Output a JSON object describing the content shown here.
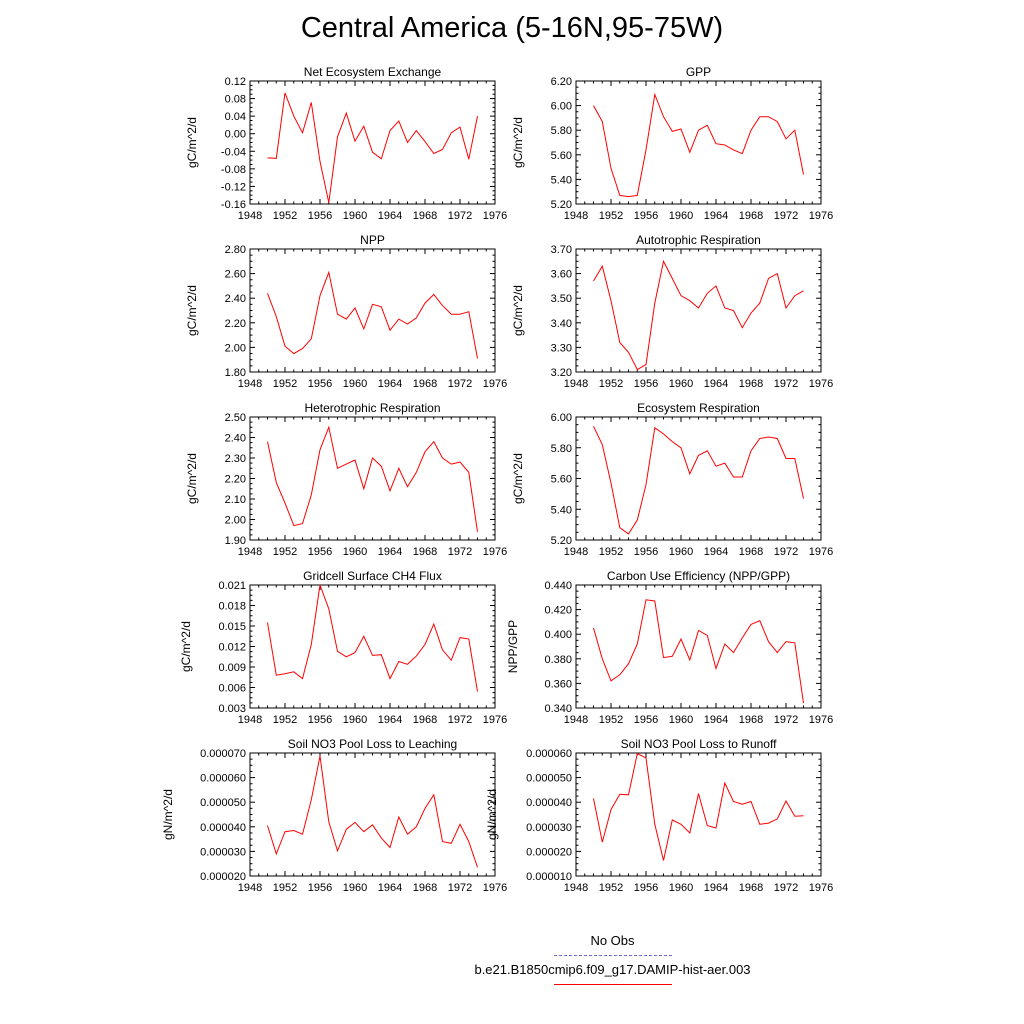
{
  "title": "Central America (5-16N,95-75W)",
  "colors": {
    "model": "#ff0000",
    "obs": "#6b6bd6",
    "axis": "#000000"
  },
  "legend": {
    "obs_label": "No Obs",
    "model_label": "b.e21.B1850cmip6.f09_g17.DAMIP-hist-aer.003"
  },
  "chart_data": [
    {
      "type": "line",
      "title": "Net Ecosystem Exchange",
      "ylabel": "gC/m^2/d",
      "xlim": [
        1948,
        1976
      ],
      "ylim": [
        -0.16,
        0.12
      ],
      "xticks": [
        "1948",
        "1952",
        "1956",
        "1960",
        "1964",
        "1968",
        "1972",
        "1976"
      ],
      "yticks": [
        "-0.16",
        "-0.12",
        "-0.08",
        "-0.04",
        "0.00",
        "0.04",
        "0.08",
        "0.12"
      ],
      "x": [
        1950,
        1951,
        1952,
        1953,
        1954,
        1955,
        1956,
        1957,
        1958,
        1959,
        1960,
        1961,
        1962,
        1963,
        1964,
        1965,
        1966,
        1967,
        1968,
        1969,
        1970,
        1971,
        1972,
        1973,
        1974
      ],
      "values": [
        -0.055,
        -0.056,
        0.093,
        0.04,
        0.002,
        0.071,
        -0.063,
        -0.157,
        -0.007,
        0.047,
        -0.017,
        0.017,
        -0.042,
        -0.057,
        0.007,
        0.029,
        -0.02,
        0.007,
        -0.018,
        -0.045,
        -0.036,
        0.002,
        0.015,
        -0.058,
        0.04
      ]
    },
    {
      "type": "line",
      "title": "GPP",
      "ylabel": "gC/m^2/d",
      "xlim": [
        1948,
        1976
      ],
      "ylim": [
        5.2,
        6.2
      ],
      "xticks": [
        "1948",
        "1952",
        "1956",
        "1960",
        "1964",
        "1968",
        "1972",
        "1976"
      ],
      "yticks": [
        "5.20",
        "5.40",
        "5.60",
        "5.80",
        "6.00",
        "6.20"
      ],
      "x": [
        1950,
        1951,
        1952,
        1953,
        1954,
        1955,
        1956,
        1957,
        1958,
        1959,
        1960,
        1961,
        1962,
        1963,
        1964,
        1965,
        1966,
        1967,
        1968,
        1969,
        1970,
        1971,
        1972,
        1973,
        1974
      ],
      "values": [
        6.0,
        5.87,
        5.49,
        5.27,
        5.26,
        5.27,
        5.64,
        6.09,
        5.91,
        5.79,
        5.81,
        5.62,
        5.8,
        5.84,
        5.69,
        5.68,
        5.64,
        5.61,
        5.8,
        5.91,
        5.91,
        5.87,
        5.73,
        5.8,
        5.44
      ]
    },
    {
      "type": "line",
      "title": "NPP",
      "ylabel": "gC/m^2/d",
      "xlim": [
        1948,
        1976
      ],
      "ylim": [
        1.8,
        2.8
      ],
      "xticks": [
        "1948",
        "1952",
        "1956",
        "1960",
        "1964",
        "1968",
        "1972",
        "1976"
      ],
      "yticks": [
        "1.80",
        "2.00",
        "2.20",
        "2.40",
        "2.60",
        "2.80"
      ],
      "x": [
        1950,
        1951,
        1952,
        1953,
        1954,
        1955,
        1956,
        1957,
        1958,
        1959,
        1960,
        1961,
        1962,
        1963,
        1964,
        1965,
        1966,
        1967,
        1968,
        1969,
        1970,
        1971,
        1972,
        1973,
        1974
      ],
      "values": [
        2.44,
        2.25,
        2.01,
        1.95,
        1.99,
        2.07,
        2.42,
        2.61,
        2.27,
        2.23,
        2.32,
        2.15,
        2.35,
        2.33,
        2.14,
        2.23,
        2.19,
        2.24,
        2.36,
        2.43,
        2.34,
        2.27,
        2.27,
        2.29,
        1.91
      ]
    },
    {
      "type": "line",
      "title": "Autotrophic Respiration",
      "ylabel": "gC/m^2/d",
      "xlim": [
        1948,
        1976
      ],
      "ylim": [
        3.2,
        3.7
      ],
      "xticks": [
        "1948",
        "1952",
        "1956",
        "1960",
        "1964",
        "1968",
        "1972",
        "1976"
      ],
      "yticks": [
        "3.20",
        "3.30",
        "3.40",
        "3.50",
        "3.60",
        "3.70"
      ],
      "x": [
        1950,
        1951,
        1952,
        1953,
        1954,
        1955,
        1956,
        1957,
        1958,
        1959,
        1960,
        1961,
        1962,
        1963,
        1964,
        1965,
        1966,
        1967,
        1968,
        1969,
        1970,
        1971,
        1972,
        1973,
        1974
      ],
      "values": [
        3.57,
        3.63,
        3.49,
        3.32,
        3.28,
        3.21,
        3.23,
        3.48,
        3.65,
        3.58,
        3.51,
        3.49,
        3.46,
        3.52,
        3.55,
        3.46,
        3.45,
        3.38,
        3.44,
        3.48,
        3.58,
        3.6,
        3.46,
        3.51,
        3.53
      ]
    },
    {
      "type": "line",
      "title": "Heterotrophic Respiration",
      "ylabel": "gC/m^2/d",
      "xlim": [
        1948,
        1976
      ],
      "ylim": [
        1.9,
        2.5
      ],
      "xticks": [
        "1948",
        "1952",
        "1956",
        "1960",
        "1964",
        "1968",
        "1972",
        "1976"
      ],
      "yticks": [
        "1.90",
        "2.00",
        "2.10",
        "2.20",
        "2.30",
        "2.40",
        "2.50"
      ],
      "x": [
        1950,
        1951,
        1952,
        1953,
        1954,
        1955,
        1956,
        1957,
        1958,
        1959,
        1960,
        1961,
        1962,
        1963,
        1964,
        1965,
        1966,
        1967,
        1968,
        1969,
        1970,
        1971,
        1972,
        1973,
        1974
      ],
      "values": [
        2.38,
        2.18,
        2.08,
        1.97,
        1.98,
        2.12,
        2.34,
        2.45,
        2.25,
        2.27,
        2.29,
        2.15,
        2.3,
        2.26,
        2.14,
        2.25,
        2.16,
        2.23,
        2.33,
        2.38,
        2.3,
        2.27,
        2.28,
        2.23,
        1.94
      ]
    },
    {
      "type": "line",
      "title": "Ecosystem Respiration",
      "ylabel": "gC/m^2/d",
      "xlim": [
        1948,
        1976
      ],
      "ylim": [
        5.2,
        6.0
      ],
      "xticks": [
        "1948",
        "1952",
        "1956",
        "1960",
        "1964",
        "1968",
        "1972",
        "1976"
      ],
      "yticks": [
        "5.20",
        "5.40",
        "5.60",
        "5.80",
        "6.00"
      ],
      "x": [
        1950,
        1951,
        1952,
        1953,
        1954,
        1955,
        1956,
        1957,
        1958,
        1959,
        1960,
        1961,
        1962,
        1963,
        1964,
        1965,
        1966,
        1967,
        1968,
        1969,
        1970,
        1971,
        1972,
        1973,
        1974
      ],
      "values": [
        5.94,
        5.82,
        5.57,
        5.28,
        5.24,
        5.33,
        5.56,
        5.93,
        5.89,
        5.84,
        5.8,
        5.63,
        5.75,
        5.78,
        5.68,
        5.7,
        5.61,
        5.61,
        5.78,
        5.86,
        5.87,
        5.86,
        5.73,
        5.73,
        5.47
      ]
    },
    {
      "type": "line",
      "title": "Gridcell Surface CH4 Flux",
      "ylabel": "gC/m^2/d",
      "xlim": [
        1948,
        1976
      ],
      "ylim": [
        0.003,
        0.021
      ],
      "xticks": [
        "1948",
        "1952",
        "1956",
        "1960",
        "1964",
        "1968",
        "1972",
        "1976"
      ],
      "yticks": [
        "0.003",
        "0.006",
        "0.009",
        "0.012",
        "0.015",
        "0.018",
        "0.021"
      ],
      "x": [
        1950,
        1951,
        1952,
        1953,
        1954,
        1955,
        1956,
        1957,
        1958,
        1959,
        1960,
        1961,
        1962,
        1963,
        1964,
        1965,
        1966,
        1967,
        1968,
        1969,
        1970,
        1971,
        1972,
        1973,
        1974
      ],
      "values": [
        0.0155,
        0.0078,
        0.008,
        0.0083,
        0.0073,
        0.0123,
        0.021,
        0.0175,
        0.0113,
        0.0105,
        0.0111,
        0.0135,
        0.0107,
        0.0108,
        0.0073,
        0.0098,
        0.0094,
        0.0106,
        0.0123,
        0.0153,
        0.0115,
        0.01,
        0.0133,
        0.0131,
        0.0054
      ]
    },
    {
      "type": "line",
      "title": "Carbon Use Efficiency (NPP/GPP)",
      "ylabel": "NPP/GPP",
      "xlim": [
        1948,
        1976
      ],
      "ylim": [
        0.34,
        0.44
      ],
      "xticks": [
        "1948",
        "1952",
        "1956",
        "1960",
        "1964",
        "1968",
        "1972",
        "1976"
      ],
      "yticks": [
        "0.340",
        "0.360",
        "0.380",
        "0.400",
        "0.420",
        "0.440"
      ],
      "x": [
        1950,
        1951,
        1952,
        1953,
        1954,
        1955,
        1956,
        1957,
        1958,
        1959,
        1960,
        1961,
        1962,
        1963,
        1964,
        1965,
        1966,
        1967,
        1968,
        1969,
        1970,
        1971,
        1972,
        1973,
        1974
      ],
      "values": [
        0.405,
        0.38,
        0.362,
        0.367,
        0.376,
        0.392,
        0.428,
        0.427,
        0.381,
        0.382,
        0.396,
        0.379,
        0.403,
        0.399,
        0.372,
        0.392,
        0.385,
        0.397,
        0.408,
        0.411,
        0.394,
        0.385,
        0.394,
        0.393,
        0.344
      ]
    },
    {
      "type": "line",
      "title": "Soil NO3 Pool Loss to Leaching",
      "ylabel": "gN/m^2/d",
      "xlim": [
        1948,
        1976
      ],
      "ylim": [
        2e-05,
        7e-05
      ],
      "xticks": [
        "1948",
        "1952",
        "1956",
        "1960",
        "1964",
        "1968",
        "1972",
        "1976"
      ],
      "yticks": [
        "0.000020",
        "0.000030",
        "0.000040",
        "0.000050",
        "0.000060",
        "0.000070"
      ],
      "x": [
        1950,
        1951,
        1952,
        1953,
        1954,
        1955,
        1956,
        1957,
        1958,
        1959,
        1960,
        1961,
        1962,
        1963,
        1964,
        1965,
        1966,
        1967,
        1968,
        1969,
        1970,
        1971,
        1972,
        1973,
        1974
      ],
      "values": [
        4.05e-05,
        2.9e-05,
        3.8e-05,
        3.85e-05,
        3.7e-05,
        5.1e-05,
        6.88e-05,
        4.2e-05,
        3.02e-05,
        3.9e-05,
        4.18e-05,
        3.8e-05,
        4.08e-05,
        3.55e-05,
        3.16e-05,
        4.4e-05,
        3.7e-05,
        4e-05,
        4.75e-05,
        5.3e-05,
        3.4e-05,
        3.33e-05,
        4.1e-05,
        3.4e-05,
        2.35e-05
      ]
    },
    {
      "type": "line",
      "title": "Soil NO3 Pool Loss to Runoff",
      "ylabel": "gN/m^2/d",
      "xlim": [
        1948,
        1976
      ],
      "ylim": [
        1e-05,
        6e-05
      ],
      "xticks": [
        "1948",
        "1952",
        "1956",
        "1960",
        "1964",
        "1968",
        "1972",
        "1976"
      ],
      "yticks": [
        "0.000010",
        "0.000020",
        "0.000030",
        "0.000040",
        "0.000050",
        "0.000060"
      ],
      "x": [
        1950,
        1951,
        1952,
        1953,
        1954,
        1955,
        1956,
        1957,
        1958,
        1959,
        1960,
        1961,
        1962,
        1963,
        1964,
        1965,
        1966,
        1967,
        1968,
        1969,
        1970,
        1971,
        1972,
        1973,
        1974
      ],
      "values": [
        4.15e-05,
        2.38e-05,
        3.7e-05,
        4.32e-05,
        4.3e-05,
        5.98e-05,
        5.8e-05,
        3.1e-05,
        1.63e-05,
        3.28e-05,
        3.1e-05,
        2.75e-05,
        4.35e-05,
        3.05e-05,
        2.95e-05,
        4.78e-05,
        4.03e-05,
        3.92e-05,
        4.03e-05,
        3.1e-05,
        3.15e-05,
        3.32e-05,
        4.05e-05,
        3.43e-05,
        3.45e-05
      ]
    }
  ]
}
